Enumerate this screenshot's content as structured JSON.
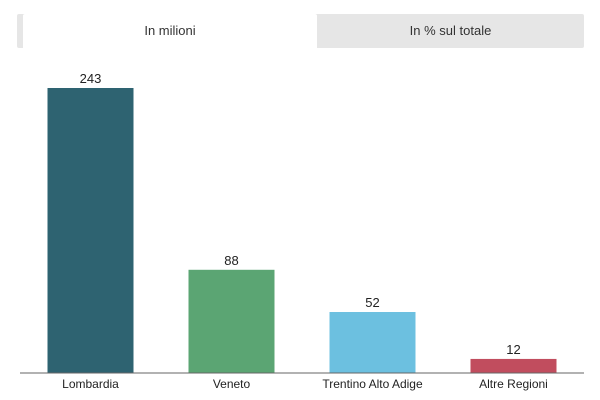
{
  "tabs": [
    {
      "label": "In milioni",
      "active": true
    },
    {
      "label": "In % sul totale",
      "active": false
    }
  ],
  "chart_data": {
    "type": "bar",
    "categories": [
      "Lombardia",
      "Veneto",
      "Trentino Alto Adige",
      "Altre Regioni"
    ],
    "values": [
      243,
      88,
      52,
      12
    ],
    "colors": [
      "#2e6371",
      "#5ba573",
      "#6cc0e0",
      "#c14d5e"
    ],
    "ylim": [
      0,
      243
    ],
    "grid": false
  }
}
